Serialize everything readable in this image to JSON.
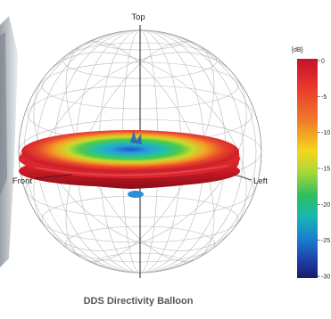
{
  "labels": {
    "top": "Top",
    "front": "Front",
    "left": "Left"
  },
  "colorbar": {
    "unit": "[dB]",
    "ticks": [
      "0",
      "-5",
      "-10",
      "-15",
      "-20",
      "-25",
      "-30"
    ],
    "colors": [
      "#c4122a",
      "#e8342c",
      "#f07a2a",
      "#f5d61c",
      "#a6d83a",
      "#2fbf5e",
      "#17b7b0",
      "#1a7fd0",
      "#1f3fa8",
      "#1b1a6a"
    ]
  },
  "caption": "DDS Directivity Balloon"
}
